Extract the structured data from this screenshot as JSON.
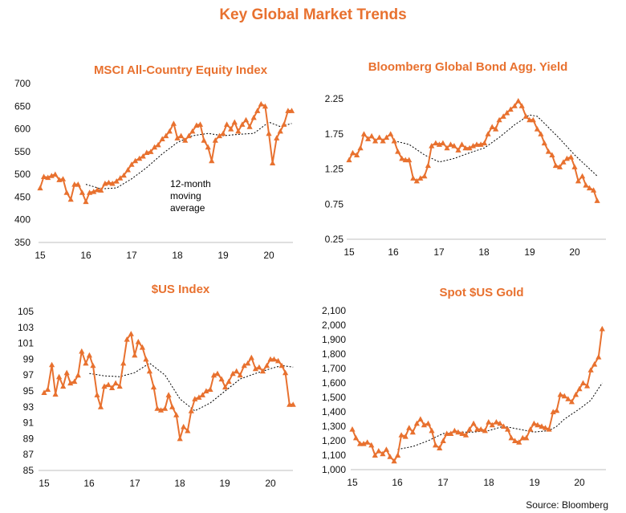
{
  "title": "Key Global Market Trends",
  "source": "Source: Bloomberg",
  "colors": {
    "series": "#e8712f",
    "average": "#000000",
    "title": "#e8712f",
    "axis": "#bfbfbf"
  },
  "chart_data": [
    {
      "type": "line",
      "title": "MSCI All-Country Equity Index",
      "x_ticks": [
        "15",
        "16",
        "17",
        "18",
        "19",
        "20"
      ],
      "ylim": [
        350,
        700
      ],
      "y_ticks": [
        "350",
        "400",
        "450",
        "500",
        "550",
        "600",
        "650",
        "700"
      ],
      "annotation": [
        "12-month",
        "moving",
        "average"
      ],
      "series": [
        {
          "marker": "triangle",
          "x": [
            2015.0,
            2015.08,
            2015.17,
            2015.25,
            2015.33,
            2015.42,
            2015.5,
            2015.58,
            2015.67,
            2015.75,
            2015.83,
            2015.92,
            2016.0,
            2016.08,
            2016.17,
            2016.25,
            2016.33,
            2016.42,
            2016.5,
            2016.58,
            2016.67,
            2016.75,
            2016.83,
            2016.92,
            2017.0,
            2017.08,
            2017.17,
            2017.25,
            2017.33,
            2017.42,
            2017.5,
            2017.58,
            2017.67,
            2017.75,
            2017.83,
            2017.92,
            2018.0,
            2018.08,
            2018.17,
            2018.25,
            2018.33,
            2018.42,
            2018.5,
            2018.58,
            2018.67,
            2018.75,
            2018.83,
            2018.92,
            2019.0,
            2019.08,
            2019.17,
            2019.25,
            2019.33,
            2019.42,
            2019.5,
            2019.58,
            2019.67,
            2019.75,
            2019.83,
            2019.92,
            2020.0,
            2020.08,
            2020.17,
            2020.25,
            2020.33,
            2020.42,
            2020.5
          ],
          "y": [
            470,
            495,
            493,
            497,
            500,
            488,
            490,
            460,
            445,
            478,
            478,
            460,
            440,
            460,
            462,
            466,
            465,
            480,
            482,
            480,
            485,
            492,
            498,
            510,
            522,
            530,
            535,
            540,
            548,
            550,
            560,
            565,
            578,
            585,
            595,
            612,
            580,
            585,
            575,
            585,
            595,
            608,
            610,
            575,
            560,
            530,
            575,
            585,
            590,
            610,
            600,
            615,
            595,
            610,
            620,
            605,
            625,
            640,
            655,
            650,
            590,
            525,
            580,
            595,
            610,
            640,
            640
          ]
        },
        {
          "marker": "none",
          "x": [
            2016.0,
            2016.33,
            2016.67,
            2017.0,
            2017.33,
            2017.67,
            2018.0,
            2018.33,
            2018.67,
            2019.0,
            2019.33,
            2019.67,
            2020.0,
            2020.25,
            2020.5
          ],
          "y": [
            478,
            468,
            470,
            490,
            515,
            545,
            570,
            585,
            590,
            585,
            588,
            590,
            615,
            605,
            612
          ]
        }
      ]
    },
    {
      "type": "line",
      "title": "Bloomberg Global Bond Agg. Yield",
      "x_ticks": [
        "15",
        "16",
        "17",
        "18",
        "19",
        "20"
      ],
      "ylim": [
        0.25,
        2.25
      ],
      "y_ticks": [
        "0.25",
        "0.75",
        "1.25",
        "1.75",
        "2.25"
      ],
      "series": [
        {
          "marker": "triangle",
          "x": [
            2015.0,
            2015.08,
            2015.17,
            2015.25,
            2015.33,
            2015.42,
            2015.5,
            2015.58,
            2015.67,
            2015.75,
            2015.83,
            2015.92,
            2016.0,
            2016.08,
            2016.17,
            2016.25,
            2016.33,
            2016.42,
            2016.5,
            2016.58,
            2016.67,
            2016.75,
            2016.83,
            2016.92,
            2017.0,
            2017.08,
            2017.17,
            2017.25,
            2017.33,
            2017.42,
            2017.5,
            2017.58,
            2017.67,
            2017.75,
            2017.83,
            2017.92,
            2018.0,
            2018.08,
            2018.17,
            2018.25,
            2018.33,
            2018.42,
            2018.5,
            2018.58,
            2018.67,
            2018.75,
            2018.83,
            2018.92,
            2019.0,
            2019.08,
            2019.17,
            2019.25,
            2019.33,
            2019.42,
            2019.5,
            2019.58,
            2019.67,
            2019.75,
            2019.83,
            2019.92,
            2020.0,
            2020.08,
            2020.17,
            2020.25,
            2020.33,
            2020.42,
            2020.5
          ],
          "y": [
            1.38,
            1.48,
            1.45,
            1.55,
            1.75,
            1.68,
            1.72,
            1.65,
            1.7,
            1.65,
            1.7,
            1.75,
            1.65,
            1.5,
            1.4,
            1.38,
            1.38,
            1.12,
            1.08,
            1.12,
            1.15,
            1.3,
            1.58,
            1.62,
            1.6,
            1.62,
            1.55,
            1.6,
            1.58,
            1.52,
            1.6,
            1.55,
            1.55,
            1.58,
            1.6,
            1.6,
            1.62,
            1.75,
            1.85,
            1.82,
            1.95,
            2.0,
            2.05,
            2.1,
            2.15,
            2.22,
            2.15,
            2.0,
            1.95,
            1.95,
            1.82,
            1.75,
            1.62,
            1.5,
            1.45,
            1.3,
            1.28,
            1.35,
            1.4,
            1.42,
            1.28,
            1.08,
            1.15,
            1.02,
            0.98,
            0.95,
            0.8
          ]
        },
        {
          "marker": "none",
          "x": [
            2016.0,
            2016.33,
            2016.67,
            2017.0,
            2017.33,
            2017.67,
            2018.0,
            2018.33,
            2018.67,
            2019.0,
            2019.17,
            2019.33,
            2019.67,
            2020.0,
            2020.25,
            2020.5
          ],
          "y": [
            1.65,
            1.6,
            1.45,
            1.35,
            1.4,
            1.48,
            1.55,
            1.7,
            1.88,
            2.02,
            2.0,
            1.9,
            1.68,
            1.45,
            1.3,
            1.15
          ]
        }
      ]
    },
    {
      "type": "line",
      "title": "$US Index",
      "x_ticks": [
        "15",
        "16",
        "17",
        "18",
        "19",
        "20"
      ],
      "ylim": [
        85,
        105
      ],
      "y_ticks": [
        "85",
        "87",
        "89",
        "91",
        "93",
        "95",
        "97",
        "99",
        "101",
        "103",
        "105"
      ],
      "series": [
        {
          "marker": "triangle",
          "x": [
            2015.0,
            2015.08,
            2015.17,
            2015.25,
            2015.33,
            2015.42,
            2015.5,
            2015.58,
            2015.67,
            2015.75,
            2015.83,
            2015.92,
            2016.0,
            2016.08,
            2016.17,
            2016.25,
            2016.33,
            2016.42,
            2016.5,
            2016.58,
            2016.67,
            2016.75,
            2016.83,
            2016.92,
            2017.0,
            2017.08,
            2017.17,
            2017.25,
            2017.33,
            2017.42,
            2017.5,
            2017.58,
            2017.67,
            2017.75,
            2017.83,
            2017.92,
            2018.0,
            2018.08,
            2018.17,
            2018.25,
            2018.33,
            2018.42,
            2018.5,
            2018.58,
            2018.67,
            2018.75,
            2018.83,
            2018.92,
            2019.0,
            2019.08,
            2019.17,
            2019.25,
            2019.33,
            2019.42,
            2019.5,
            2019.58,
            2019.67,
            2019.75,
            2019.83,
            2019.92,
            2020.0,
            2020.08,
            2020.17,
            2020.25,
            2020.33,
            2020.42,
            2020.5
          ],
          "y": [
            94.8,
            95.2,
            98.3,
            94.6,
            96.8,
            95.6,
            97.3,
            96.0,
            96.2,
            97.0,
            100.0,
            98.5,
            99.5,
            98.2,
            94.5,
            93.0,
            95.6,
            95.8,
            95.4,
            96.0,
            95.6,
            98.5,
            101.5,
            102.2,
            99.5,
            101.2,
            100.5,
            99.0,
            97.5,
            95.5,
            92.8,
            92.6,
            92.8,
            94.5,
            93.0,
            92.0,
            89.0,
            90.5,
            90.0,
            92.5,
            94.0,
            94.2,
            94.5,
            95.0,
            95.2,
            97.0,
            97.2,
            96.5,
            95.5,
            96.2,
            97.2,
            97.5,
            97.0,
            98.2,
            98.5,
            99.2,
            97.8,
            98.0,
            97.5,
            98.2,
            99.0,
            99.0,
            98.8,
            98.2,
            97.3,
            93.3,
            93.3
          ]
        },
        {
          "marker": "none",
          "x": [
            2016.0,
            2016.33,
            2016.67,
            2017.0,
            2017.33,
            2017.67,
            2018.0,
            2018.33,
            2018.67,
            2019.0,
            2019.33,
            2019.67,
            2020.0,
            2020.25,
            2020.5
          ],
          "y": [
            97.2,
            96.9,
            96.8,
            97.3,
            98.5,
            97.0,
            94.0,
            92.5,
            93.5,
            95.0,
            96.5,
            97.2,
            97.8,
            98.2,
            98.0
          ]
        }
      ]
    },
    {
      "type": "line",
      "title": "Spot $US Gold",
      "x_ticks": [
        "15",
        "16",
        "17",
        "18",
        "19",
        "20"
      ],
      "ylim": [
        1000,
        2100
      ],
      "y_ticks": [
        "1,000",
        "1,100",
        "1,200",
        "1,300",
        "1,400",
        "1,500",
        "1,600",
        "1,700",
        "1,800",
        "1,900",
        "2,000",
        "2,100"
      ],
      "series": [
        {
          "marker": "triangle",
          "x": [
            2015.0,
            2015.08,
            2015.17,
            2015.25,
            2015.33,
            2015.42,
            2015.5,
            2015.58,
            2015.67,
            2015.75,
            2015.83,
            2015.92,
            2016.0,
            2016.08,
            2016.17,
            2016.25,
            2016.33,
            2016.42,
            2016.5,
            2016.58,
            2016.67,
            2016.75,
            2016.83,
            2016.92,
            2017.0,
            2017.08,
            2017.17,
            2017.25,
            2017.33,
            2017.42,
            2017.5,
            2017.58,
            2017.67,
            2017.75,
            2017.83,
            2017.92,
            2018.0,
            2018.08,
            2018.17,
            2018.25,
            2018.33,
            2018.42,
            2018.5,
            2018.58,
            2018.67,
            2018.75,
            2018.83,
            2018.92,
            2019.0,
            2019.08,
            2019.17,
            2019.25,
            2019.33,
            2019.42,
            2019.5,
            2019.58,
            2019.67,
            2019.75,
            2019.83,
            2019.92,
            2020.0,
            2020.08,
            2020.17,
            2020.25,
            2020.33,
            2020.42,
            2020.5
          ],
          "y": [
            1280,
            1220,
            1180,
            1180,
            1190,
            1170,
            1100,
            1130,
            1110,
            1140,
            1090,
            1060,
            1100,
            1240,
            1230,
            1290,
            1260,
            1320,
            1350,
            1310,
            1320,
            1270,
            1170,
            1150,
            1200,
            1250,
            1250,
            1270,
            1260,
            1250,
            1240,
            1280,
            1320,
            1280,
            1280,
            1270,
            1330,
            1310,
            1330,
            1320,
            1300,
            1280,
            1220,
            1200,
            1190,
            1220,
            1220,
            1280,
            1320,
            1310,
            1300,
            1290,
            1280,
            1400,
            1410,
            1520,
            1510,
            1490,
            1470,
            1520,
            1560,
            1600,
            1580,
            1690,
            1730,
            1780,
            1975
          ]
        },
        {
          "marker": "none",
          "x": [
            2016.0,
            2016.33,
            2016.67,
            2017.0,
            2017.33,
            2017.67,
            2018.0,
            2018.33,
            2018.67,
            2019.0,
            2019.33,
            2019.5,
            2019.67,
            2020.0,
            2020.25,
            2020.5
          ],
          "y": [
            1140,
            1160,
            1200,
            1250,
            1260,
            1260,
            1270,
            1300,
            1280,
            1260,
            1270,
            1300,
            1350,
            1420,
            1480,
            1600
          ]
        }
      ]
    }
  ]
}
